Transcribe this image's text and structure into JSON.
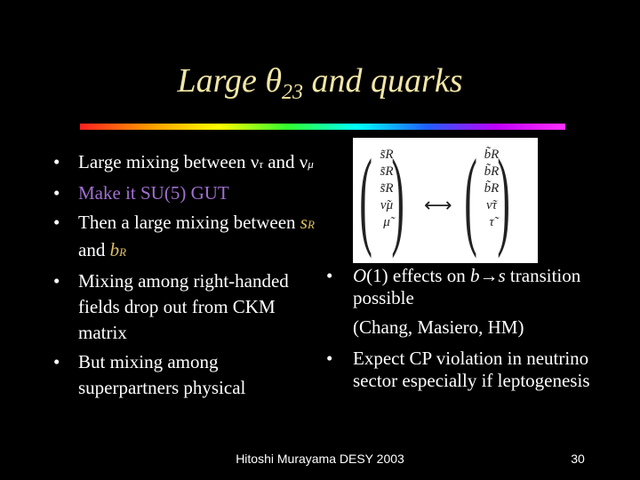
{
  "title": {
    "pre": "Large ",
    "theta": "θ",
    "sub": "23",
    "post": " and quarks"
  },
  "left_bullets": [
    {
      "id": "b1",
      "parts": [
        "Large mixing between ",
        "ν",
        "τ",
        " and ",
        "ν",
        "μ"
      ]
    },
    {
      "id": "b2",
      "text": "Make it SU(5) GUT"
    },
    {
      "id": "b3",
      "parts": [
        "Then a large mixing between ",
        "s",
        "R",
        " and ",
        "b",
        "R"
      ]
    },
    {
      "id": "b4",
      "text": "Mixing among right-handed fields drop out from CKM matrix"
    },
    {
      "id": "b5",
      "text": "But mixing among superpartners physical"
    }
  ],
  "matrix": {
    "left_col": [
      "s̃R",
      "s̃R",
      "s̃R",
      "ν̃μ",
      "μ̃"
    ],
    "right_col": [
      "b̃R",
      "b̃R",
      "b̃R",
      "ν̃τ",
      "τ̃"
    ],
    "arrow": "⟷"
  },
  "right_bullets": [
    {
      "id": "r1",
      "parts": [
        "O",
        "(1) effects on ",
        "b",
        "→",
        "s",
        " transition possible"
      ]
    },
    {
      "id": "citation",
      "text": "(Chang, Masiero, HM)"
    },
    {
      "id": "r2",
      "text": "Expect CP violation in neutrino sector especially if leptogenesis"
    }
  ],
  "bullet_char": "•",
  "footer": "Hitoshi Murayama DESY 2003",
  "page_number": "30",
  "colors": {
    "background": "#000000",
    "title": "#f2e6a6",
    "text": "#ffffff",
    "purple_item": "#a070d0",
    "gold_symbols": "#e0c060"
  }
}
